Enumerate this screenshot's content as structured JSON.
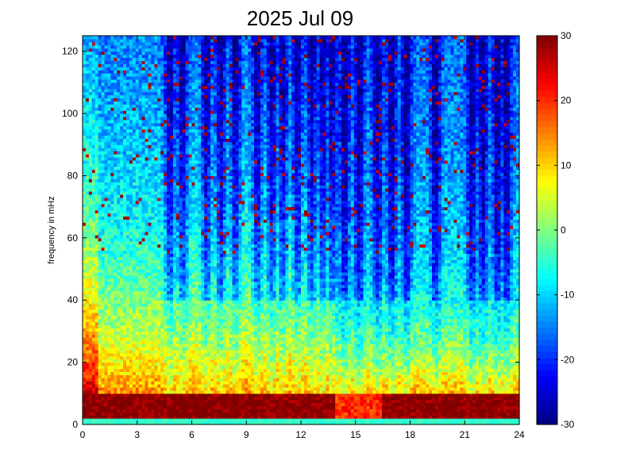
{
  "chart_data": {
    "type": "heatmap",
    "title": "2025 Jul 09",
    "xlabel": "",
    "ylabel": "frequency in mHz",
    "xlim": [
      0,
      24
    ],
    "ylim": [
      0,
      125
    ],
    "x_ticks": [
      "0",
      "3",
      "6",
      "9",
      "12",
      "15",
      "18",
      "21",
      "24"
    ],
    "y_ticks": [
      "0",
      "20",
      "40",
      "60",
      "80",
      "100",
      "120"
    ],
    "colorbar": {
      "colormap": "jet",
      "clim": [
        -30,
        30
      ],
      "ticks": [
        "-30",
        "-20",
        "-10",
        "0",
        "10",
        "20",
        "30"
      ]
    },
    "grid": false,
    "features": {
      "low_frequency_band_mHz": [
        0,
        10
      ],
      "dark_vertical_streaks_hours": [
        4.8,
        5.5,
        6.8,
        7.6,
        8.4,
        9.6,
        10.4,
        11.0,
        11.8,
        12.6,
        13.2,
        13.7,
        14.4,
        15.2,
        16.2,
        17.0,
        17.8,
        19.4,
        21.4,
        22.0,
        22.8,
        23.3
      ],
      "warm_region_hours": [
        0,
        13.8
      ],
      "warm_region_max_mHz": 38
    }
  }
}
